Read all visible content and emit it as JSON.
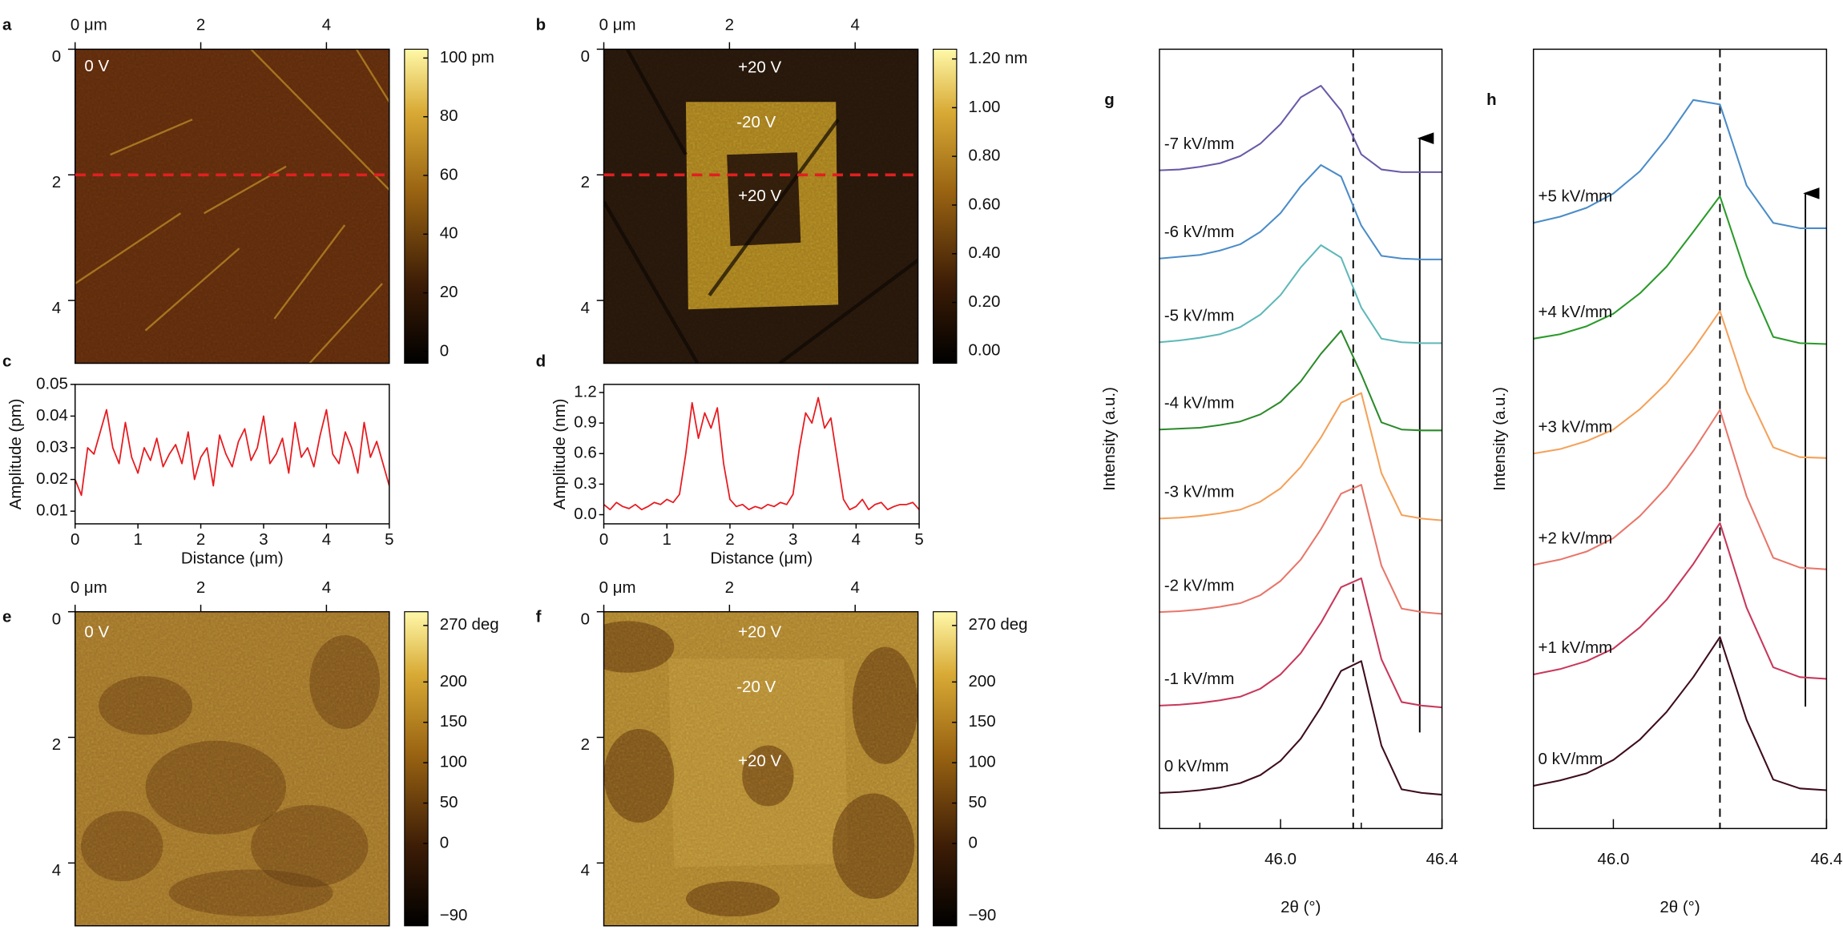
{
  "chart_data": [
    {
      "type": "image",
      "panel": "a",
      "xlim": [
        0,
        5
      ],
      "ylim": [
        0,
        5
      ],
      "xticks": [
        {
          "value": 0,
          "label": "0 μm"
        },
        2,
        4
      ],
      "yticks": [
        0,
        2,
        4
      ],
      "annotations": [
        "0 V"
      ],
      "hline": 2,
      "hline_color": "#e02020",
      "colorbar": {
        "lim": [
          -4,
          103
        ],
        "ticks": [
          {
            "value": 100,
            "label": "100 pm"
          },
          80,
          60,
          40,
          20,
          0
        ]
      }
    },
    {
      "type": "image",
      "panel": "b",
      "xlim": [
        0,
        5
      ],
      "ylim": [
        0,
        5
      ],
      "xticks": [
        {
          "value": 0,
          "label": "0 μm"
        },
        2,
        4
      ],
      "yticks": [
        0,
        2,
        4
      ],
      "annotations": [
        "+20 V",
        "-20 V",
        "+20 V"
      ],
      "hline": 2,
      "hline_color": "#e02020",
      "colorbar": {
        "lim": [
          -0.05,
          1.24
        ],
        "ticks": [
          {
            "value": 1.2,
            "label": "1.20 nm"
          },
          {
            "value": 1,
            "label": "1.00"
          },
          {
            "value": 0.8,
            "label": "0.80"
          },
          {
            "value": 0.6,
            "label": "0.60"
          },
          {
            "value": 0.4,
            "label": "0.40"
          },
          {
            "value": 0.2,
            "label": "0.20"
          },
          {
            "value": 0,
            "label": "0.00"
          }
        ]
      }
    },
    {
      "type": "line",
      "panel": "c",
      "xlabel": "Distance (μm)",
      "ylabel": "Amplitude (pm)",
      "xlim": [
        0,
        5
      ],
      "ylim": [
        0.006,
        0.05
      ],
      "xticks": [
        0,
        1,
        2,
        3,
        4,
        5
      ],
      "yticks": [
        0.01,
        0.02,
        0.03,
        0.04,
        0.05
      ],
      "x": [
        0,
        0.1,
        0.2,
        0.3,
        0.4,
        0.5,
        0.6,
        0.7,
        0.8,
        0.9,
        1,
        1.1,
        1.2,
        1.3,
        1.4,
        1.5,
        1.6,
        1.7,
        1.8,
        1.9,
        2,
        2.1,
        2.2,
        2.3,
        2.4,
        2.5,
        2.6,
        2.7,
        2.8,
        2.9,
        3,
        3.1,
        3.2,
        3.3,
        3.4,
        3.5,
        3.6,
        3.7,
        3.8,
        3.9,
        4,
        4.1,
        4.2,
        4.3,
        4.4,
        4.5,
        4.6,
        4.7,
        4.8,
        4.9,
        5
      ],
      "series": [
        {
          "color": "#e8191e",
          "values": [
            0.02,
            0.015,
            0.03,
            0.028,
            0.035,
            0.042,
            0.03,
            0.025,
            0.038,
            0.027,
            0.022,
            0.03,
            0.026,
            0.033,
            0.024,
            0.028,
            0.031,
            0.025,
            0.035,
            0.02,
            0.027,
            0.03,
            0.018,
            0.034,
            0.028,
            0.024,
            0.032,
            0.036,
            0.026,
            0.03,
            0.04,
            0.025,
            0.028,
            0.033,
            0.022,
            0.038,
            0.027,
            0.03,
            0.024,
            0.034,
            0.042,
            0.028,
            0.025,
            0.035,
            0.03,
            0.022,
            0.038,
            0.027,
            0.032,
            0.025,
            0.018
          ]
        }
      ]
    },
    {
      "type": "line",
      "panel": "d",
      "xlabel": "Distance (μm)",
      "ylabel": "Amplitude (nm)",
      "xlim": [
        0,
        5
      ],
      "ylim": [
        -0.09,
        1.28
      ],
      "xticks": [
        0,
        1,
        2,
        3,
        4,
        5
      ],
      "yticks": [
        {
          "value": 0,
          "label": "0.0"
        },
        0.3,
        0.6,
        0.9,
        1.2
      ],
      "x": [
        0,
        0.1,
        0.2,
        0.3,
        0.4,
        0.5,
        0.6,
        0.7,
        0.8,
        0.9,
        1,
        1.1,
        1.2,
        1.3,
        1.4,
        1.5,
        1.6,
        1.7,
        1.8,
        1.9,
        2,
        2.1,
        2.2,
        2.3,
        2.4,
        2.5,
        2.6,
        2.7,
        2.8,
        2.9,
        3,
        3.1,
        3.2,
        3.3,
        3.4,
        3.5,
        3.6,
        3.7,
        3.8,
        3.9,
        4,
        4.1,
        4.2,
        4.3,
        4.4,
        4.5,
        4.6,
        4.7,
        4.8,
        4.9,
        5
      ],
      "series": [
        {
          "color": "#e8191e",
          "values": [
            0.1,
            0.05,
            0.12,
            0.08,
            0.06,
            0.1,
            0.05,
            0.08,
            0.12,
            0.1,
            0.15,
            0.12,
            0.2,
            0.6,
            1.1,
            0.75,
            1.0,
            0.85,
            1.05,
            0.5,
            0.15,
            0.08,
            0.1,
            0.05,
            0.08,
            0.06,
            0.1,
            0.08,
            0.12,
            0.1,
            0.2,
            0.65,
            1.0,
            0.9,
            1.15,
            0.85,
            0.95,
            0.55,
            0.15,
            0.05,
            0.08,
            0.15,
            0.05,
            0.1,
            0.12,
            0.05,
            0.08,
            0.1,
            0.1,
            0.12,
            0.05
          ]
        }
      ]
    },
    {
      "type": "image",
      "panel": "e",
      "xlim": [
        0,
        5
      ],
      "ylim": [
        0,
        5
      ],
      "xticks": [
        {
          "value": 0,
          "label": "0 μm"
        },
        2,
        4
      ],
      "yticks": [
        0,
        2,
        4
      ],
      "annotations": [
        "0 V"
      ],
      "colorbar": {
        "lim": [
          -102,
          287
        ],
        "ticks": [
          {
            "value": 270,
            "label": "270 deg"
          },
          200,
          150,
          100,
          50,
          0,
          {
            "value": -90,
            "label": "−90"
          }
        ]
      }
    },
    {
      "type": "image",
      "panel": "f",
      "xlim": [
        0,
        5
      ],
      "ylim": [
        0,
        5
      ],
      "xticks": [
        {
          "value": 0,
          "label": "0 μm"
        },
        2,
        4
      ],
      "yticks": [
        0,
        2,
        4
      ],
      "annotations": [
        "+20 V",
        "-20 V",
        "+20 V"
      ],
      "colorbar": {
        "lim": [
          -102,
          287
        ],
        "ticks": [
          {
            "value": 270,
            "label": "270 deg"
          },
          200,
          150,
          100,
          50,
          0,
          {
            "value": -90,
            "label": "−90"
          }
        ]
      }
    },
    {
      "type": "line",
      "panel": "g",
      "xlabel": "2θ (°)",
      "ylabel": "Intensity (a.u.)",
      "xlim": [
        45.7,
        46.4
      ],
      "ylim": [
        0,
        8.75
      ],
      "xticks": [
        {
          "value": 46,
          "label": "46.0"
        },
        46.4
      ],
      "xminorticks": [
        45.8,
        46.2
      ],
      "vline": 46.18,
      "x": [
        45.7,
        45.75,
        45.8,
        45.85,
        45.9,
        45.95,
        46.0,
        46.05,
        46.1,
        46.15,
        46.2,
        46.25,
        46.3,
        46.35,
        46.4
      ],
      "series": [
        {
          "name": "0 kV/mm",
          "color": "#3d0c1e",
          "values": [
            0.4,
            0.41,
            0.43,
            0.46,
            0.51,
            0.6,
            0.76,
            1.01,
            1.36,
            1.77,
            1.88,
            0.93,
            0.44,
            0.4,
            0.38
          ]
        },
        {
          "name": "-1 kV/mm",
          "color": "#c8375a",
          "values": [
            1.38,
            1.39,
            1.41,
            1.44,
            1.48,
            1.57,
            1.73,
            1.97,
            2.31,
            2.71,
            2.81,
            1.9,
            1.42,
            1.38,
            1.36
          ]
        },
        {
          "name": "-2 kV/mm",
          "color": "#e8766a",
          "values": [
            2.43,
            2.44,
            2.46,
            2.49,
            2.53,
            2.62,
            2.78,
            3.02,
            3.36,
            3.76,
            3.86,
            2.95,
            2.47,
            2.43,
            2.41
          ]
        },
        {
          "name": "-3 kV/mm",
          "color": "#f4a15a",
          "values": [
            3.48,
            3.49,
            3.51,
            3.54,
            3.58,
            3.67,
            3.82,
            4.06,
            4.39,
            4.78,
            4.89,
            3.99,
            3.52,
            3.48,
            3.46
          ]
        },
        {
          "name": "-4 kV/mm",
          "color": "#2a8a2a",
          "values": [
            4.48,
            4.49,
            4.5,
            4.53,
            4.57,
            4.65,
            4.79,
            5.02,
            5.33,
            5.59,
            5.1,
            4.56,
            4.48,
            4.47,
            4.47
          ]
        },
        {
          "name": "-5 kV/mm",
          "color": "#5fb8b8",
          "values": [
            5.46,
            5.48,
            5.51,
            5.55,
            5.63,
            5.77,
            5.99,
            6.3,
            6.55,
            6.41,
            5.85,
            5.5,
            5.46,
            5.45,
            5.45
          ]
        },
        {
          "name": "-6 kV/mm",
          "color": "#4a8cc8",
          "values": [
            6.4,
            6.42,
            6.44,
            6.49,
            6.56,
            6.7,
            6.91,
            7.21,
            7.45,
            7.32,
            6.77,
            6.43,
            6.4,
            6.39,
            6.39
          ]
        },
        {
          "name": "-7 kV/mm",
          "color": "#6a5aa8",
          "values": [
            7.39,
            7.4,
            7.43,
            7.47,
            7.55,
            7.69,
            7.91,
            8.21,
            8.34,
            8.06,
            7.57,
            7.4,
            7.37,
            7.37,
            7.37
          ]
        }
      ]
    },
    {
      "type": "line",
      "panel": "h",
      "xlabel": "2θ (°)",
      "ylabel": "Intensity (a.u.)",
      "xlim": [
        45.85,
        46.4
      ],
      "ylim": [
        0,
        8.75
      ],
      "xticks": [
        {
          "value": 46,
          "label": "46.0"
        },
        46.4
      ],
      "xminorticks": [
        46.2
      ],
      "vline": 46.2,
      "x": [
        45.85,
        45.9,
        45.95,
        46.0,
        46.05,
        46.1,
        46.15,
        46.2,
        46.25,
        46.3,
        46.35,
        46.4
      ],
      "series": [
        {
          "name": "0 kV/mm",
          "color": "#3d0c1e",
          "values": [
            0.48,
            0.54,
            0.62,
            0.77,
            1.0,
            1.31,
            1.7,
            2.15,
            1.22,
            0.55,
            0.45,
            0.43
          ]
        },
        {
          "name": "+1 kV/mm",
          "color": "#c8375a",
          "values": [
            1.73,
            1.79,
            1.88,
            2.02,
            2.26,
            2.57,
            2.97,
            3.43,
            2.48,
            1.81,
            1.7,
            1.68
          ]
        },
        {
          "name": "+2 kV/mm",
          "color": "#e8766a",
          "values": [
            2.96,
            3.02,
            3.11,
            3.26,
            3.51,
            3.83,
            4.24,
            4.7,
            3.73,
            3.04,
            2.93,
            2.91
          ]
        },
        {
          "name": "+3 kV/mm",
          "color": "#f4a15a",
          "values": [
            4.21,
            4.26,
            4.35,
            4.48,
            4.71,
            5.0,
            5.38,
            5.81,
            4.91,
            4.28,
            4.17,
            4.16
          ]
        },
        {
          "name": "+4 kV/mm",
          "color": "#2a9a2a",
          "values": [
            5.5,
            5.55,
            5.64,
            5.78,
            6.01,
            6.31,
            6.7,
            7.1,
            6.2,
            5.52,
            5.45,
            5.44
          ]
        },
        {
          "name": "+5 kV/mm",
          "color": "#4a8cc8",
          "values": [
            6.8,
            6.87,
            6.97,
            7.13,
            7.38,
            7.75,
            8.18,
            8.13,
            7.22,
            6.8,
            6.74,
            6.74
          ]
        }
      ]
    }
  ]
}
